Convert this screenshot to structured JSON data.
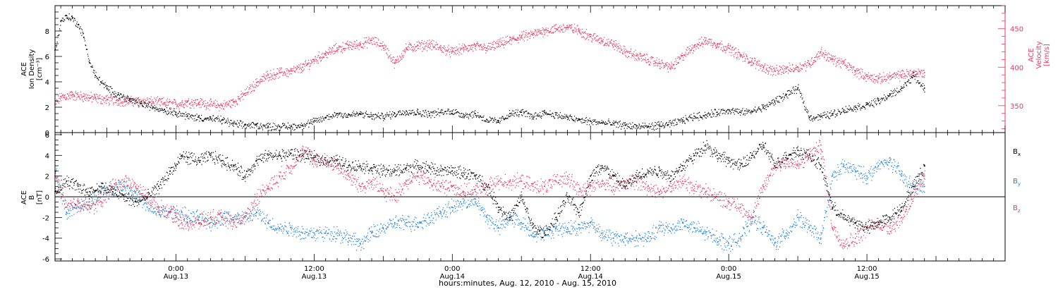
{
  "colors": {
    "density": "#000000",
    "velocity": "#e8375f",
    "bx": "#000000",
    "by": "#1a7fd8",
    "bz": "#e8375f",
    "axis": "#000000",
    "velocity_axis": "#e8375f"
  },
  "footer": {
    "caption": "hours:minutes, Aug. 12, 2010 - Aug. 15, 2010"
  },
  "chart_data": [
    {
      "type": "scatter",
      "x_unit": "hours",
      "x_reference": "Aug. 12, 2010 00:00",
      "xlim": [
        13.5,
        96.0
      ],
      "x_ticks": [
        {
          "x": 24,
          "time": "0:00",
          "date": "Aug.13"
        },
        {
          "x": 36,
          "time": "12:00",
          "date": "Aug.13"
        },
        {
          "x": 48,
          "time": "0:00",
          "date": "Aug.14"
        },
        {
          "x": 60,
          "time": "12:00",
          "date": "Aug.14"
        },
        {
          "x": 72,
          "time": "0:00",
          "date": "Aug.15"
        },
        {
          "x": 84,
          "time": "12:00",
          "date": "Aug.15"
        }
      ],
      "left_axis": {
        "label_line1": "ACE",
        "label_line2": "Ion Density",
        "label_line3": "[cm⁻³]",
        "ylim": [
          0,
          10
        ],
        "ticks": [
          {
            "value": 0,
            "label": "0"
          },
          {
            "value": 2,
            "label": "2"
          },
          {
            "value": 4,
            "label": "4"
          },
          {
            "value": 6,
            "label": "6"
          },
          {
            "value": 8,
            "label": "8"
          }
        ]
      },
      "right_axis": {
        "label_line1": "ACE",
        "label_line2": "Velocity",
        "label_line3": "[km/s]",
        "ylim": [
          315,
          480
        ],
        "ticks": [
          {
            "value": 350,
            "label": "350"
          },
          {
            "value": 400,
            "label": "400"
          },
          {
            "value": 450,
            "label": "450"
          }
        ]
      },
      "series": [
        {
          "key": "density",
          "axis": "left",
          "x": [
            13.5,
            14.0,
            14.5,
            15.0,
            15.5,
            16.0,
            16.5,
            17.0,
            17.5,
            18.0,
            19.0,
            20.0,
            21.0,
            22.0,
            23.0,
            24.0,
            25.0,
            26.0,
            27.0,
            28.0,
            29.0,
            30.0,
            31.0,
            32.0,
            33.0,
            34.0,
            35.0,
            36.0,
            37.0,
            38.0,
            39.0,
            40.0,
            41.0,
            42.0,
            43.0,
            44.0,
            45.0,
            46.0,
            47.0,
            48.0,
            49.0,
            50.0,
            51.0,
            52.0,
            53.0,
            54.0,
            55.0,
            56.0,
            57.0,
            58.0,
            59.0,
            60.0,
            61.0,
            62.0,
            63.0,
            64.0,
            65.0,
            66.0,
            67.0,
            68.0,
            69.0,
            70.0,
            71.0,
            72.0,
            73.0,
            74.0,
            75.0,
            76.0,
            77.0,
            78.0,
            79.0,
            80.0,
            81.0,
            82.0,
            83.0,
            84.0,
            85.0,
            86.0,
            87.0,
            88.0,
            89.0
          ],
          "y": [
            6.5,
            8.8,
            9.2,
            9.0,
            8.5,
            7.5,
            5.5,
            4.5,
            4.0,
            3.5,
            3.0,
            2.6,
            2.3,
            2.0,
            1.8,
            1.6,
            1.3,
            1.2,
            1.1,
            1.0,
            0.7,
            0.6,
            0.6,
            0.5,
            0.5,
            0.5,
            0.6,
            0.9,
            1.2,
            1.5,
            1.4,
            1.5,
            1.3,
            1.3,
            1.5,
            1.7,
            1.6,
            1.5,
            1.6,
            1.7,
            1.4,
            1.5,
            1.0,
            0.9,
            1.5,
            1.6,
            1.3,
            1.6,
            1.4,
            1.2,
            1.0,
            0.9,
            0.8,
            0.7,
            0.6,
            0.5,
            0.5,
            0.6,
            0.7,
            1.0,
            1.3,
            1.4,
            1.6,
            1.8,
            1.6,
            1.7,
            2.0,
            2.5,
            3.0,
            3.5,
            1.2,
            1.3,
            1.5,
            1.8,
            2.0,
            2.2,
            2.5,
            3.0,
            3.5,
            4.5,
            3.5
          ]
        },
        {
          "key": "velocity",
          "axis": "right",
          "x": [
            13.5,
            14.0,
            15.0,
            16.0,
            17.0,
            18.0,
            19.0,
            20.0,
            21.0,
            22.0,
            23.0,
            24.0,
            25.0,
            26.0,
            27.0,
            28.0,
            29.0,
            30.0,
            31.0,
            32.0,
            33.0,
            34.0,
            35.0,
            36.0,
            37.0,
            38.0,
            39.0,
            40.0,
            41.0,
            42.0,
            43.0,
            44.0,
            45.0,
            46.0,
            47.0,
            48.0,
            49.0,
            50.0,
            51.0,
            52.0,
            53.0,
            54.0,
            55.0,
            56.0,
            57.0,
            58.0,
            59.0,
            60.0,
            61.0,
            62.0,
            63.0,
            64.0,
            65.0,
            66.0,
            67.0,
            68.0,
            69.0,
            70.0,
            71.0,
            72.0,
            73.0,
            74.0,
            75.0,
            76.0,
            77.0,
            78.0,
            79.0,
            80.0,
            81.0,
            82.0,
            83.0,
            84.0,
            85.0,
            86.0,
            87.0,
            88.0,
            89.0
          ],
          "y": [
            352,
            362,
            364,
            362,
            360,
            358,
            357,
            356,
            356,
            355,
            354,
            352,
            355,
            354,
            352,
            350,
            355,
            366,
            380,
            390,
            393,
            395,
            400,
            410,
            418,
            425,
            428,
            430,
            435,
            428,
            405,
            425,
            428,
            430,
            425,
            420,
            425,
            427,
            425,
            430,
            435,
            440,
            443,
            448,
            450,
            452,
            448,
            440,
            435,
            430,
            420,
            415,
            410,
            405,
            400,
            415,
            428,
            435,
            430,
            425,
            415,
            408,
            400,
            395,
            398,
            400,
            405,
            420,
            410,
            405,
            395,
            388,
            385,
            388,
            390,
            393,
            393
          ]
        }
      ]
    },
    {
      "type": "scatter",
      "x_unit": "hours",
      "xlim": [
        13.5,
        96.0
      ],
      "left_axis": {
        "label_line1": "ACE",
        "label_line2": "B",
        "label_line3": "[nT]",
        "ylim": [
          -6.2,
          6.2
        ],
        "ticks": [
          {
            "value": -6,
            "label": "-6"
          },
          {
            "value": -4,
            "label": "-4"
          },
          {
            "value": -2,
            "label": "-2"
          },
          {
            "value": 0,
            "label": "0"
          },
          {
            "value": 2,
            "label": "2"
          },
          {
            "value": 4,
            "label": "4"
          },
          {
            "value": 6,
            "label": "6"
          }
        ]
      },
      "zero_line": true,
      "legend": [
        {
          "key": "bx",
          "label": "B",
          "sub": "x"
        },
        {
          "key": "by",
          "label": "B",
          "sub": "y"
        },
        {
          "key": "bz",
          "label": "B",
          "sub": "z"
        }
      ],
      "series": [
        {
          "key": "bx",
          "x": [
            13.5,
            14.5,
            15.5,
            16.5,
            17.5,
            18.5,
            19.5,
            20.5,
            21.5,
            22.5,
            23.5,
            24.0,
            24.5,
            25.0,
            26.0,
            27.0,
            28.0,
            29.0,
            30.0,
            31.0,
            32.0,
            33.0,
            34.0,
            35.0,
            36.0,
            37.0,
            38.0,
            39.0,
            40.0,
            41.0,
            42.0,
            43.0,
            44.0,
            45.0,
            46.0,
            47.0,
            48.0,
            49.0,
            50.0,
            51.0,
            52.0,
            53.0,
            54.0,
            55.0,
            56.0,
            57.0,
            58.0,
            59.0,
            60.0,
            61.0,
            62.0,
            63.0,
            64.0,
            65.0,
            66.0,
            67.0,
            68.0,
            69.0,
            70.0,
            71.0,
            72.0,
            73.0,
            74.0,
            75.0,
            76.0,
            77.0,
            78.0,
            79.0,
            80.0,
            81.0,
            82.0,
            83.0,
            84.0,
            85.0,
            86.0,
            87.0,
            88.0,
            89.0
          ],
          "y": [
            0.5,
            1.5,
            1.0,
            0.5,
            1.0,
            0.5,
            0.0,
            -0.5,
            0.0,
            1.0,
            2.5,
            3.0,
            4.0,
            3.8,
            3.5,
            4.0,
            3.5,
            3.0,
            2.0,
            3.5,
            4.0,
            4.0,
            4.2,
            4.0,
            3.8,
            3.5,
            3.5,
            3.0,
            3.0,
            2.8,
            2.5,
            2.5,
            2.8,
            3.0,
            2.8,
            2.5,
            2.5,
            2.3,
            2.0,
            1.0,
            -1.0,
            -2.0,
            0.0,
            -3.0,
            -3.5,
            -2.0,
            0.0,
            -1.5,
            2.0,
            3.0,
            2.0,
            1.0,
            2.0,
            2.5,
            2.5,
            2.0,
            3.0,
            4.0,
            5.0,
            4.0,
            3.5,
            3.0,
            4.0,
            5.0,
            3.0,
            4.0,
            4.5,
            4.0,
            3.0,
            -1.0,
            -2.0,
            -2.5,
            -3.0,
            -2.5,
            -2.0,
            -1.0,
            1.0,
            3.0
          ]
        },
        {
          "key": "by",
          "x": [
            13.5,
            14.5,
            15.5,
            16.5,
            17.5,
            18.5,
            19.5,
            20.5,
            21.5,
            22.5,
            23.5,
            24.0,
            24.5,
            25.0,
            26.0,
            27.0,
            28.0,
            29.0,
            30.0,
            31.0,
            32.0,
            33.0,
            34.0,
            35.0,
            36.0,
            37.0,
            38.0,
            39.0,
            40.0,
            41.0,
            42.0,
            43.0,
            44.0,
            45.0,
            46.0,
            47.0,
            48.0,
            49.0,
            50.0,
            51.0,
            52.0,
            53.0,
            54.0,
            55.0,
            56.0,
            57.0,
            58.0,
            59.0,
            60.0,
            61.0,
            62.0,
            63.0,
            64.0,
            65.0,
            66.0,
            67.0,
            68.0,
            69.0,
            70.0,
            71.0,
            72.0,
            73.0,
            74.0,
            75.0,
            76.0,
            77.0,
            78.0,
            79.0,
            80.0,
            81.0,
            82.0,
            83.0,
            84.0,
            85.0,
            86.0,
            87.0,
            88.0,
            89.0
          ],
          "y": [
            2.5,
            -1.5,
            -1.0,
            -0.5,
            0.5,
            1.0,
            1.0,
            0.5,
            -1.0,
            -1.5,
            -1.5,
            -1.5,
            -1.5,
            -2.0,
            -2.0,
            -2.5,
            -2.0,
            -2.0,
            -2.0,
            -1.5,
            -2.5,
            -3.0,
            -3.0,
            -3.5,
            -3.5,
            -3.5,
            -3.5,
            -4.0,
            -4.5,
            -3.5,
            -3.0,
            -2.5,
            -2.5,
            -2.5,
            -2.0,
            -1.5,
            -1.0,
            -0.5,
            -0.5,
            -2.0,
            -3.0,
            -2.0,
            -2.5,
            -3.5,
            -3.5,
            -3.0,
            -3.0,
            -3.0,
            -2.5,
            -3.5,
            -4.0,
            -4.0,
            -4.0,
            -4.0,
            -3.0,
            -3.0,
            -2.5,
            -3.0,
            -3.5,
            -4.0,
            -4.5,
            -4.0,
            -2.0,
            -3.0,
            -4.5,
            -3.5,
            -2.0,
            -3.0,
            -4.0,
            2.0,
            3.0,
            2.5,
            2.0,
            3.0,
            3.5,
            2.0,
            1.0,
            1.0
          ]
        },
        {
          "key": "bz",
          "x": [
            13.5,
            14.5,
            15.5,
            16.5,
            17.5,
            18.5,
            19.5,
            20.5,
            21.5,
            22.5,
            23.5,
            24.0,
            24.5,
            25.0,
            26.0,
            27.0,
            28.0,
            29.0,
            30.0,
            31.0,
            32.0,
            33.0,
            34.0,
            35.0,
            36.0,
            37.0,
            38.0,
            39.0,
            40.0,
            41.0,
            42.0,
            43.0,
            44.0,
            45.0,
            46.0,
            47.0,
            48.0,
            49.0,
            50.0,
            51.0,
            52.0,
            53.0,
            54.0,
            55.0,
            56.0,
            57.0,
            58.0,
            59.0,
            60.0,
            61.0,
            62.0,
            63.0,
            64.0,
            65.0,
            66.0,
            67.0,
            68.0,
            69.0,
            70.0,
            71.0,
            72.0,
            73.0,
            74.0,
            75.0,
            76.0,
            77.0,
            78.0,
            79.0,
            80.0,
            81.0,
            82.0,
            83.0,
            84.0,
            85.0,
            86.0,
            87.0,
            88.0,
            89.0
          ],
          "y": [
            2.0,
            -1.0,
            -0.5,
            -1.0,
            -0.5,
            1.0,
            1.5,
            1.0,
            0.0,
            -1.0,
            -1.5,
            -2.0,
            -2.5,
            -2.5,
            -2.5,
            -2.0,
            -2.0,
            -2.5,
            -2.0,
            0.0,
            1.0,
            2.0,
            3.0,
            4.5,
            3.5,
            3.5,
            3.0,
            2.0,
            1.0,
            1.5,
            0.5,
            0.0,
            1.5,
            2.0,
            1.5,
            1.0,
            1.0,
            0.5,
            0.5,
            1.0,
            1.5,
            1.5,
            1.5,
            1.0,
            1.0,
            1.5,
            2.0,
            0.5,
            1.0,
            1.5,
            1.0,
            1.5,
            1.5,
            1.0,
            0.5,
            1.0,
            1.5,
            1.0,
            0.5,
            0.0,
            -0.5,
            -1.0,
            -2.0,
            1.0,
            3.0,
            3.5,
            3.0,
            4.0,
            5.0,
            -3.0,
            -4.5,
            -4.0,
            -3.0,
            -2.5,
            -3.0,
            -2.0,
            0.0,
            2.0
          ]
        }
      ]
    }
  ]
}
